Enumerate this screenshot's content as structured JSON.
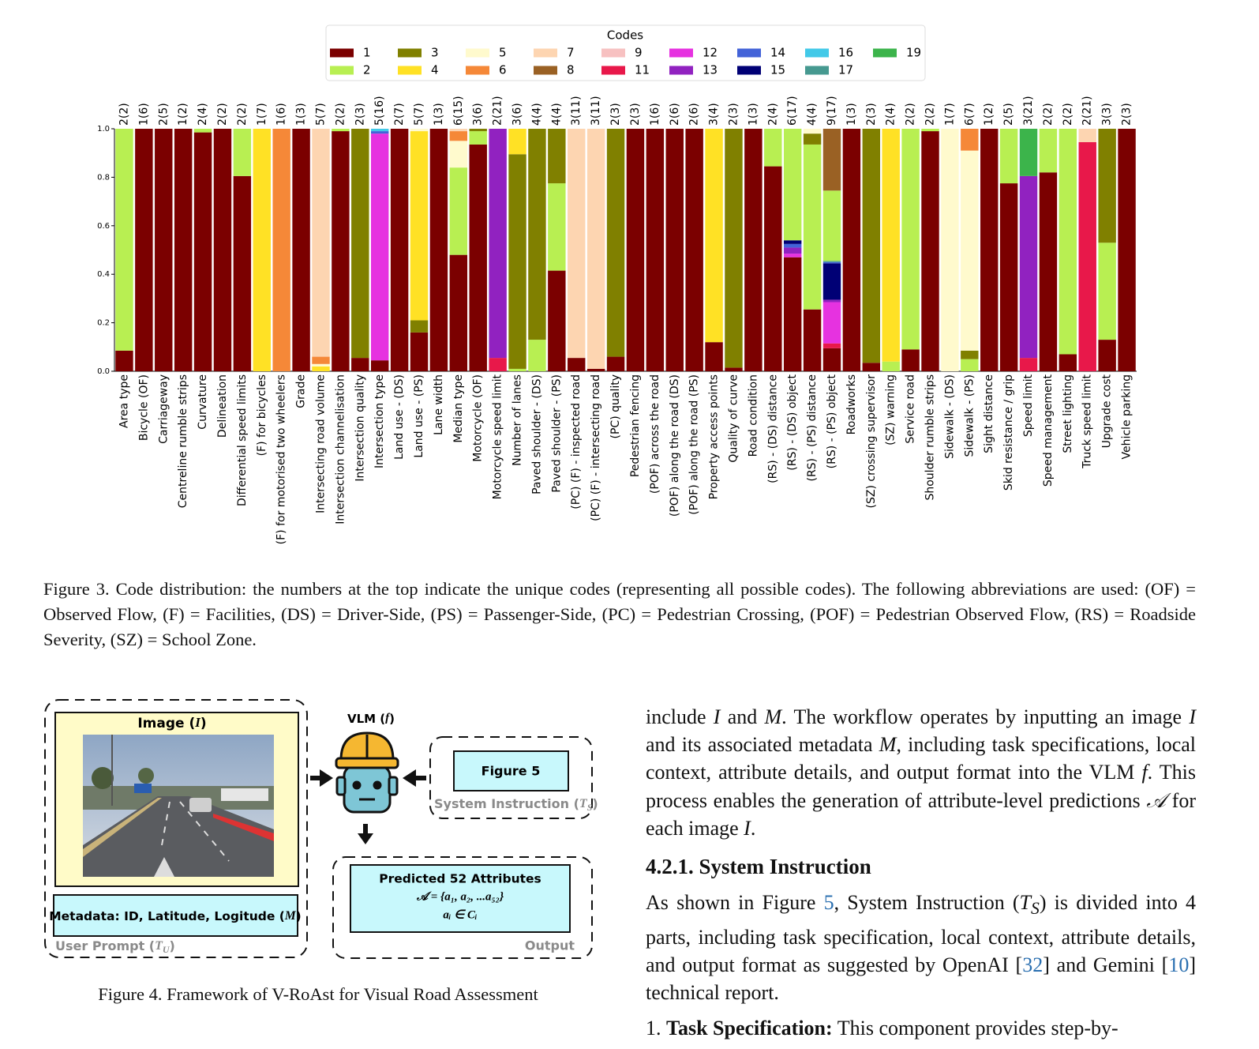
{
  "chart_data": {
    "type": "stacked_bar",
    "legend_title": "Codes",
    "codes": [
      {
        "name": 1,
        "color": "#7b0000"
      },
      {
        "name": 2,
        "color": "#b8ef52"
      },
      {
        "name": 3,
        "color": "#808000"
      },
      {
        "name": 4,
        "color": "#ffe125"
      },
      {
        "name": 5,
        "color": "#fffacd"
      },
      {
        "name": 6,
        "color": "#f58838"
      },
      {
        "name": 7,
        "color": "#fdd5b1"
      },
      {
        "name": 8,
        "color": "#9a6124"
      },
      {
        "name": 9,
        "color": "#f7c1c1"
      },
      {
        "name": 11,
        "color": "#e8184a"
      },
      {
        "name": 12,
        "color": "#e632e0"
      },
      {
        "name": 13,
        "color": "#9122c0"
      },
      {
        "name": 14,
        "color": "#4363d8"
      },
      {
        "name": 15,
        "color": "#000075"
      },
      {
        "name": 16,
        "color": "#42c9e8"
      },
      {
        "name": 17,
        "color": "#469990"
      },
      {
        "name": 19,
        "color": "#3cb44b"
      }
    ],
    "categories": [
      "Area type",
      "Bicycle (OF)",
      "Carriageway",
      "Centreline rumble strips",
      "Curvature",
      "Delineation",
      "Differential speed limits",
      "(F) for bicycles",
      "(F) for motorised two wheelers",
      "Grade",
      "Intersecting road volume",
      "Intersection channelisation",
      "Intersection quality",
      "Intersection type",
      "Land use - (DS)",
      "Land use - (PS)",
      "Lane width",
      "Median type",
      "Motorcycle (OF)",
      "Motorcycle speed limit",
      "Number of lanes",
      "Paved shoulder - (DS)",
      "Paved shoulder - (PS)",
      "(PC) (F) - inspected road",
      "(PC) (F) - intersecting road",
      "(PC) quality",
      "Pedestrian fencing",
      "(POF) across the road",
      "(POF) along the road (DS)",
      "(POF) along the road (PS)",
      "Property access points",
      "Quality of curve",
      "Road condition",
      "(RS) - (DS) distance",
      "(RS) - (DS) object",
      "(RS) - (PS) distance",
      "(RS) - (PS) object",
      "Roadworks",
      "(SZ) crossing supervisor",
      "(SZ) warning",
      "Service road",
      "Shoulder rumble strips",
      "Sidewalk - (DS)",
      "Sidewalk - (PS)",
      "Sight distance",
      "Skid resistance / grip",
      "Speed limit",
      "Speed management",
      "Street lighting",
      "Truck speed limit",
      "Upgrade cost",
      "Vehicle parking"
    ],
    "top_labels": [
      "2(2)",
      "1(6)",
      "2(5)",
      "1(2)",
      "2(4)",
      "2(2)",
      "2(2)",
      "1(7)",
      "1(6)",
      "1(3)",
      "5(7)",
      "2(2)",
      "2(3)",
      "5(16)",
      "2(7)",
      "5(7)",
      "1(3)",
      "6(15)",
      "3(6)",
      "2(21)",
      "3(6)",
      "4(4)",
      "4(4)",
      "3(11)",
      "3(11)",
      "2(3)",
      "2(3)",
      "1(6)",
      "2(6)",
      "2(6)",
      "3(4)",
      "2(3)",
      "1(3)",
      "2(4)",
      "6(17)",
      "4(4)",
      "9(17)",
      "1(3)",
      "2(3)",
      "2(4)",
      "2(2)",
      "2(2)",
      "1(7)",
      "6(7)",
      "1(2)",
      "2(5)",
      "3(21)",
      "2(2)",
      "2(2)",
      "2(21)",
      "3(3)",
      "2(3)"
    ],
    "segments": [
      [
        [
          1,
          0.085
        ],
        [
          2,
          0.915
        ]
      ],
      [
        [
          1,
          1.0
        ]
      ],
      [
        [
          1,
          1.0
        ]
      ],
      [
        [
          1,
          1.0
        ]
      ],
      [
        [
          1,
          0.985
        ],
        [
          2,
          0.015
        ]
      ],
      [
        [
          1,
          1.0
        ]
      ],
      [
        [
          1,
          0.805
        ],
        [
          2,
          0.195
        ]
      ],
      [
        [
          4,
          1.0
        ]
      ],
      [
        [
          6,
          1.0
        ]
      ],
      [
        [
          1,
          1.0
        ]
      ],
      [
        [
          4,
          0.02
        ],
        [
          5,
          0.01
        ],
        [
          6,
          0.03
        ],
        [
          7,
          0.94
        ]
      ],
      [
        [
          1,
          0.99
        ],
        [
          2,
          0.01
        ]
      ],
      [
        [
          1,
          0.055
        ],
        [
          3,
          0.945
        ]
      ],
      [
        [
          1,
          0.045
        ],
        [
          12,
          0.935
        ],
        [
          14,
          0.01
        ],
        [
          16,
          0.01
        ]
      ],
      [
        [
          1,
          1.0
        ]
      ],
      [
        [
          1,
          0.16
        ],
        [
          3,
          0.05
        ],
        [
          4,
          0.78
        ],
        [
          5,
          0.01
        ]
      ],
      [
        [
          1,
          1.0
        ]
      ],
      [
        [
          1,
          0.48
        ],
        [
          2,
          0.36
        ],
        [
          5,
          0.11
        ],
        [
          6,
          0.04
        ],
        [
          7,
          0.01
        ]
      ],
      [
        [
          1,
          0.935
        ],
        [
          2,
          0.055
        ],
        [
          3,
          0.01
        ]
      ],
      [
        [
          11,
          0.055
        ],
        [
          13,
          0.945
        ]
      ],
      [
        [
          2,
          0.01
        ],
        [
          3,
          0.885
        ],
        [
          4,
          0.105
        ]
      ],
      [
        [
          2,
          0.13
        ],
        [
          3,
          0.87
        ]
      ],
      [
        [
          1,
          0.415
        ],
        [
          2,
          0.36
        ],
        [
          3,
          0.225
        ]
      ],
      [
        [
          1,
          0.055
        ],
        [
          7,
          0.945
        ]
      ],
      [
        [
          1,
          0.01
        ],
        [
          7,
          0.99
        ]
      ],
      [
        [
          1,
          0.06
        ],
        [
          3,
          0.94
        ]
      ],
      [
        [
          1,
          1.0
        ]
      ],
      [
        [
          1,
          1.0
        ]
      ],
      [
        [
          1,
          1.0
        ]
      ],
      [
        [
          1,
          1.0
        ]
      ],
      [
        [
          1,
          0.12
        ],
        [
          4,
          0.88
        ]
      ],
      [
        [
          1,
          0.015
        ],
        [
          3,
          0.985
        ]
      ],
      [
        [
          1,
          1.0
        ]
      ],
      [
        [
          1,
          0.845
        ],
        [
          2,
          0.155
        ]
      ],
      [
        [
          1,
          0.47
        ],
        [
          12,
          0.015
        ],
        [
          13,
          0.025
        ],
        [
          14,
          0.015
        ],
        [
          15,
          0.015
        ],
        [
          2,
          0.46
        ]
      ],
      [
        [
          1,
          0.255
        ],
        [
          2,
          0.68
        ],
        [
          3,
          0.045
        ],
        [
          5,
          0.02
        ]
      ],
      [
        [
          1,
          0.095
        ],
        [
          11,
          0.02
        ],
        [
          12,
          0.17
        ],
        [
          13,
          0.01
        ],
        [
          15,
          0.15
        ],
        [
          14,
          0.005
        ],
        [
          17,
          0.005
        ],
        [
          2,
          0.29
        ],
        [
          8,
          0.255
        ]
      ],
      [
        [
          1,
          1.0
        ]
      ],
      [
        [
          1,
          0.035
        ],
        [
          3,
          0.965
        ]
      ],
      [
        [
          2,
          0.04
        ],
        [
          4,
          0.96
        ]
      ],
      [
        [
          1,
          0.09
        ],
        [
          2,
          0.91
        ]
      ],
      [
        [
          1,
          0.99
        ],
        [
          2,
          0.01
        ]
      ],
      [
        [
          5,
          1.0
        ]
      ],
      [
        [
          2,
          0.05
        ],
        [
          3,
          0.035
        ],
        [
          5,
          0.825
        ],
        [
          6,
          0.09
        ]
      ],
      [
        [
          1,
          1.0
        ]
      ],
      [
        [
          1,
          0.775
        ],
        [
          2,
          0.225
        ]
      ],
      [
        [
          11,
          0.055
        ],
        [
          13,
          0.75
        ],
        [
          19,
          0.195
        ]
      ],
      [
        [
          1,
          0.82
        ],
        [
          2,
          0.18
        ]
      ],
      [
        [
          1,
          0.07
        ],
        [
          2,
          0.93
        ]
      ],
      [
        [
          11,
          0.945
        ],
        [
          7,
          0.055
        ]
      ],
      [
        [
          1,
          0.13
        ],
        [
          2,
          0.4
        ],
        [
          3,
          0.47
        ]
      ],
      [
        [
          1,
          1.0
        ]
      ]
    ],
    "ylim": [
      0,
      1
    ],
    "yticks": [
      {
        "value": 0,
        "label": "0.0"
      },
      {
        "value": 0.2,
        "label": "0.2"
      },
      {
        "value": 0.4,
        "label": "0.4"
      },
      {
        "value": 0.6,
        "label": "0.6"
      },
      {
        "value": 0.8,
        "label": "0.8"
      },
      {
        "value": 1,
        "label": "1.0"
      }
    ]
  },
  "figure3_caption": "Figure 3. Code distribution: the numbers at the top indicate the unique codes (representing all possible codes). The following abbreviations are used: (OF) = Observed Flow, (F) = Facilities, (DS) = Driver-Side, (PS) = Passenger-Side, (PC) = Pedestrian Crossing, (POF) = Pedestrian Observed Flow, (RS) = Roadside Severity, (SZ) = School Zone.",
  "figure4": {
    "image_label": [
      "Image (",
      "I",
      ")"
    ],
    "metadata": [
      "Metadata: ID, Latitude, Logitude (",
      "M",
      ")"
    ],
    "user_prompt": [
      "User Prompt (",
      "T",
      "U",
      ")"
    ],
    "vlm": [
      "VLM (",
      "f",
      ")"
    ],
    "figure_ref": "Figure 5",
    "system_instruction": [
      "System Instruction (",
      "T",
      "S",
      ")"
    ],
    "predicted": "Predicted 52 Attributes",
    "formula": "𝒜 = {a₁, a₂, ...a₅₂}",
    "membership": "aᵢ ∈ Cᵢ",
    "output": "Output",
    "caption": "Figure 4. Framework of V-RoAst for Visual Road Assessment"
  },
  "body": {
    "paragraph1": [
      "include ",
      "I",
      " and ",
      "M",
      ". The workflow operates by inputting an image ",
      "I",
      " and its associated metadata ",
      "M",
      ", including task specifications, local context, attribute details, and output format into the VLM ",
      "f",
      ". This process enables the generation of attribute-level predictions ",
      "𝒜",
      " for each image ",
      "I",
      "."
    ],
    "heading": "4.2.1. System Instruction",
    "paragraph2": [
      "As shown in Figure ",
      "5",
      ", System Instruction (",
      "T",
      "S",
      ") is divided into 4 parts, including task specification, local context, attribute details, and output format as suggested by OpenAI [",
      "32",
      "] and Gemini [",
      "10",
      "] technical report."
    ],
    "list_item": [
      "1. ",
      "Task Specification:",
      " This component provides step-by-"
    ]
  }
}
